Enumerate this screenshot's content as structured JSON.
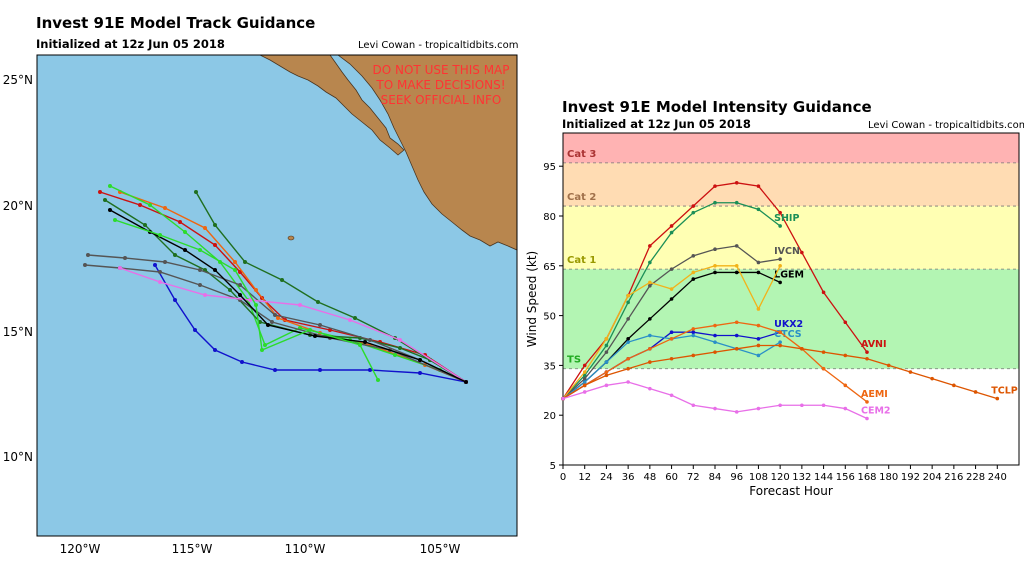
{
  "track": {
    "title": "Invest 91E Model Track Guidance",
    "subtitle": "Initialized at 12z Jun 05 2018",
    "credit": "Levi Cowan - tropicaltidbits.com",
    "warning": [
      "DO NOT USE THIS MAP",
      "TO MAKE DECISIONS!",
      "SEEK OFFICIAL INFO"
    ],
    "lat_labels": [
      "25°N",
      "20°N",
      "15°N",
      "10°N"
    ],
    "lon_labels": [
      "120°W",
      "115°W",
      "110°W",
      "105°W"
    ],
    "colors": {
      "ocean": "#8cc8e6",
      "land": "#b8864e",
      "warning": "#ff3333"
    }
  },
  "chart_data": {
    "type": "line",
    "title": "Invest 91E Model Intensity Guidance",
    "subtitle": "Initialized at 12z Jun 05 2018",
    "credit": "Levi Cowan - tropicaltidbits.com",
    "xlabel": "Forecast Hour",
    "ylabel": "Wind Speed (kt)",
    "xlim": [
      0,
      252
    ],
    "ylim": [
      5,
      105
    ],
    "xticks": [
      0,
      12,
      24,
      36,
      48,
      60,
      72,
      84,
      96,
      108,
      120,
      132,
      144,
      156,
      168,
      180,
      192,
      204,
      216,
      228,
      240
    ],
    "yticks": [
      5,
      20,
      35,
      50,
      65,
      80,
      95
    ],
    "bands": [
      {
        "label": "TS",
        "from": 34,
        "to": 64,
        "color": "#b3f5b3"
      },
      {
        "label": "Cat 1",
        "from": 64,
        "to": 83,
        "color": "#ffffb3"
      },
      {
        "label": "Cat 2",
        "from": 83,
        "to": 96,
        "color": "#ffdcb3"
      },
      {
        "label": "Cat 3",
        "from": 96,
        "to": 105,
        "color": "#ffb3b3"
      }
    ],
    "series": [
      {
        "name": "AVNI",
        "color": "#cc1111",
        "x": [
          0,
          12,
          24,
          36,
          48,
          60,
          72,
          84,
          96,
          108,
          120,
          132,
          144,
          156,
          168
        ],
        "y": [
          25,
          35,
          43,
          56,
          71,
          77,
          83,
          89,
          90,
          89,
          81,
          69,
          57,
          48,
          39
        ]
      },
      {
        "name": "SHIP",
        "color": "#1b8f57",
        "x": [
          0,
          12,
          24,
          36,
          48,
          60,
          72,
          84,
          96,
          108,
          120
        ],
        "y": [
          25,
          32,
          41,
          54,
          66,
          75,
          81,
          84,
          84,
          82,
          77
        ]
      },
      {
        "name": "IVCN",
        "color": "#555555",
        "x": [
          0,
          12,
          24,
          36,
          48,
          60,
          72,
          84,
          96,
          108,
          120
        ],
        "y": [
          25,
          31,
          39,
          49,
          59,
          64,
          68,
          70,
          71,
          66,
          67
        ]
      },
      {
        "name": "LGEM",
        "color": "#000000",
        "x": [
          0,
          12,
          24,
          36,
          48,
          60,
          72,
          84,
          96,
          108,
          120
        ],
        "y": [
          25,
          30,
          36,
          43,
          49,
          55,
          61,
          63,
          63,
          63,
          60
        ]
      },
      {
        "name": "",
        "color": "#f2b21a",
        "x": [
          0,
          12,
          24,
          36,
          48,
          60,
          72,
          84,
          96,
          108,
          120
        ],
        "y": [
          25,
          33,
          43,
          56,
          60,
          58,
          63,
          65,
          65,
          52,
          65
        ]
      },
      {
        "name": "UKX2",
        "color": "#1111cc",
        "x": [
          0,
          12,
          24,
          36,
          48,
          60,
          72,
          84,
          96,
          108,
          120
        ],
        "y": [
          25,
          29,
          33,
          37,
          40,
          45,
          45,
          44,
          44,
          43,
          45
        ]
      },
      {
        "name": "CTCS",
        "color": "#2a8fc8",
        "x": [
          0,
          12,
          24,
          36,
          48,
          60,
          72,
          84,
          96,
          108,
          120
        ],
        "y": [
          25,
          30,
          36,
          42,
          44,
          43,
          44,
          42,
          40,
          38,
          42
        ]
      },
      {
        "name": "AEMI",
        "color": "#ee6611",
        "x": [
          0,
          12,
          24,
          36,
          48,
          60,
          72,
          84,
          96,
          108,
          120,
          132,
          144,
          156,
          168
        ],
        "y": [
          25,
          29,
          33,
          37,
          40,
          43,
          46,
          47,
          48,
          47,
          45,
          40,
          34,
          29,
          24
        ]
      },
      {
        "name": "TCLP",
        "color": "#dd5500",
        "x": [
          0,
          12,
          24,
          36,
          48,
          60,
          72,
          84,
          96,
          108,
          120,
          132,
          144,
          156,
          168,
          180,
          192,
          204,
          216,
          228,
          240
        ],
        "y": [
          25,
          29,
          32,
          34,
          36,
          37,
          38,
          39,
          40,
          41,
          41,
          40,
          39,
          38,
          37,
          35,
          33,
          31,
          29,
          27,
          25
        ]
      },
      {
        "name": "CEM2",
        "color": "#e86fe8",
        "x": [
          0,
          12,
          24,
          36,
          48,
          60,
          72,
          84,
          96,
          108,
          120,
          132,
          144,
          156,
          168
        ],
        "y": [
          25,
          27,
          29,
          30,
          28,
          26,
          23,
          22,
          21,
          22,
          23,
          23,
          23,
          22,
          19
        ]
      }
    ]
  }
}
